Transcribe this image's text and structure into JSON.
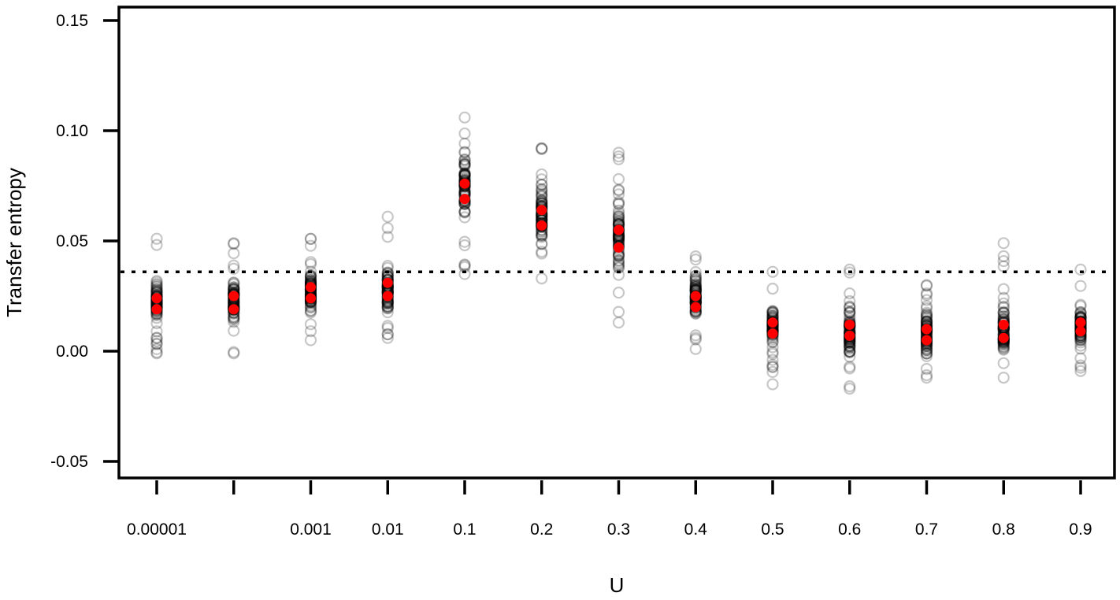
{
  "chart_data": {
    "type": "scatter",
    "title": "",
    "xlabel": "U",
    "ylabel": "Transfer entropy",
    "ylim": [
      -0.05,
      0.15
    ],
    "y_ticks": [
      {
        "value": -0.05,
        "label": "-0.05"
      },
      {
        "value": 0.0,
        "label": "0.00"
      },
      {
        "value": 0.05,
        "label": "0.05"
      },
      {
        "value": 0.1,
        "label": "0.10"
      },
      {
        "value": 0.15,
        "label": "0.15"
      }
    ],
    "categories": [
      "0.00001",
      "",
      "0.001",
      "0.01",
      "0.1",
      "0.2",
      "0.3",
      "0.4",
      "0.5",
      "0.6",
      "0.7",
      "0.8",
      "0.9"
    ],
    "reference_line": {
      "value": 0.036,
      "style": "dotted",
      "color": "#000000"
    },
    "grid": false,
    "legend": null,
    "colors": {
      "points": "#000000",
      "summary": "#ff0000",
      "axis": "#000000"
    },
    "series": [
      {
        "name": "replicates (open circles, semi-transparent)",
        "ranges": [
          {
            "min": -0.001,
            "max": 0.051,
            "core": [
              0.01,
              0.034
            ]
          },
          {
            "min": -0.001,
            "max": 0.049,
            "core": [
              0.012,
              0.033
            ]
          },
          {
            "min": 0.005,
            "max": 0.051,
            "core": [
              0.015,
              0.038
            ]
          },
          {
            "min": 0.006,
            "max": 0.061,
            "core": [
              0.014,
              0.042
            ]
          },
          {
            "min": 0.035,
            "max": 0.106,
            "core": [
              0.055,
              0.095
            ]
          },
          {
            "min": 0.033,
            "max": 0.092,
            "core": [
              0.042,
              0.08
            ]
          },
          {
            "min": 0.013,
            "max": 0.09,
            "core": [
              0.03,
              0.076
            ]
          },
          {
            "min": 0.001,
            "max": 0.043,
            "core": [
              0.01,
              0.038
            ]
          },
          {
            "min": -0.015,
            "max": 0.036,
            "core": [
              0.0,
              0.022
            ]
          },
          {
            "min": -0.017,
            "max": 0.037,
            "core": [
              -0.005,
              0.023
            ]
          },
          {
            "min": -0.012,
            "max": 0.03,
            "core": [
              -0.008,
              0.022
            ]
          },
          {
            "min": -0.012,
            "max": 0.049,
            "core": [
              -0.005,
              0.025
            ]
          },
          {
            "min": -0.009,
            "max": 0.037,
            "core": [
              0.0,
              0.022
            ]
          }
        ]
      },
      {
        "name": "summary (red filled points, upper)",
        "values": [
          0.024,
          0.025,
          0.029,
          0.031,
          0.076,
          0.064,
          0.055,
          0.025,
          0.013,
          0.012,
          0.01,
          0.012,
          0.013
        ]
      },
      {
        "name": "summary (red filled points, lower)",
        "values": [
          0.019,
          0.019,
          0.024,
          0.025,
          0.069,
          0.057,
          0.047,
          0.02,
          0.008,
          0.007,
          0.005,
          0.006,
          0.009
        ]
      }
    ]
  }
}
